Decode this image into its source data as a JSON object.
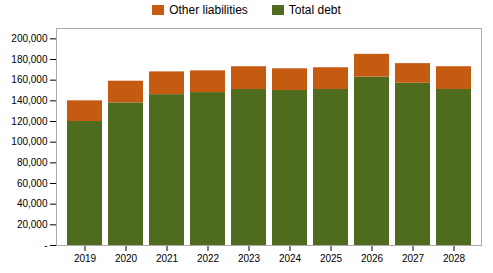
{
  "chart_data": {
    "type": "bar",
    "stacked": true,
    "categories": [
      "2019",
      "2020",
      "2021",
      "2022",
      "2023",
      "2024",
      "2025",
      "2026",
      "2027",
      "2028"
    ],
    "series": [
      {
        "name": "Total debt",
        "color": "#4e6b1e",
        "values": [
          120000,
          138000,
          146000,
          148000,
          151000,
          150000,
          151000,
          163000,
          157000,
          151000
        ]
      },
      {
        "name": "Other liabilities",
        "color": "#c55a11",
        "values": [
          20000,
          21000,
          22000,
          21000,
          22000,
          21000,
          21000,
          22000,
          19000,
          22000
        ]
      }
    ],
    "ylim": [
      0,
      210000
    ],
    "yticks": [
      {
        "value": 0,
        "label": "-"
      },
      {
        "value": 20000,
        "label": "20,000"
      },
      {
        "value": 40000,
        "label": "40,000"
      },
      {
        "value": 60000,
        "label": "60,000"
      },
      {
        "value": 80000,
        "label": "80,000"
      },
      {
        "value": 100000,
        "label": "100,000"
      },
      {
        "value": 120000,
        "label": "120,000"
      },
      {
        "value": 140000,
        "label": "140,000"
      },
      {
        "value": 160000,
        "label": "160,000"
      },
      {
        "value": 180000,
        "label": "180,000"
      },
      {
        "value": 200000,
        "label": "200,000"
      }
    ],
    "legend": "top",
    "grid": false
  }
}
